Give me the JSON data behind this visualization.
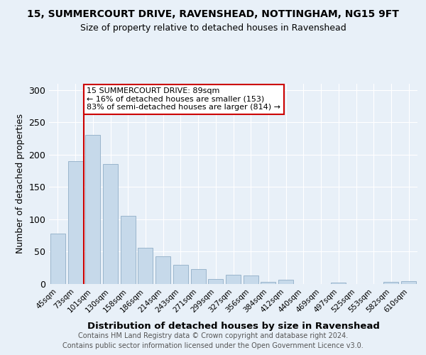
{
  "title1": "15, SUMMERCOURT DRIVE, RAVENSHEAD, NOTTINGHAM, NG15 9FT",
  "title2": "Size of property relative to detached houses in Ravenshead",
  "xlabel": "Distribution of detached houses by size in Ravenshead",
  "ylabel": "Number of detached properties",
  "categories": [
    "45sqm",
    "73sqm",
    "101sqm",
    "130sqm",
    "158sqm",
    "186sqm",
    "214sqm",
    "243sqm",
    "271sqm",
    "299sqm",
    "327sqm",
    "356sqm",
    "384sqm",
    "412sqm",
    "440sqm",
    "469sqm",
    "497sqm",
    "525sqm",
    "553sqm",
    "582sqm",
    "610sqm"
  ],
  "values": [
    78,
    190,
    230,
    185,
    105,
    56,
    43,
    30,
    23,
    8,
    14,
    13,
    3,
    7,
    0,
    0,
    2,
    0,
    0,
    3,
    4
  ],
  "bar_color": "#c6d9ea",
  "bar_edge_color": "#9ab5cc",
  "vline_x_index": 2,
  "vline_color": "#cc0000",
  "annotation_text": "15 SUMMERCOURT DRIVE: 89sqm\n← 16% of detached houses are smaller (153)\n83% of semi-detached houses are larger (814) →",
  "annotation_box_color": "#ffffff",
  "annotation_box_edge": "#cc0000",
  "ylim": [
    0,
    310
  ],
  "yticks": [
    0,
    50,
    100,
    150,
    200,
    250,
    300
  ],
  "footer1": "Contains HM Land Registry data © Crown copyright and database right 2024.",
  "footer2": "Contains public sector information licensed under the Open Government Licence v3.0.",
  "bg_color": "#e8f0f8",
  "plot_bg_color": "#e8f0f8"
}
